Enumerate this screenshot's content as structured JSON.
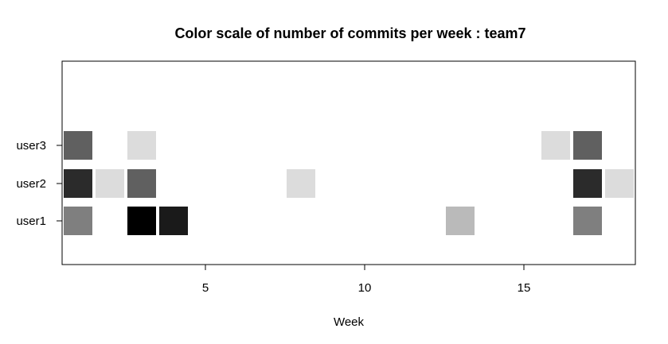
{
  "chart_data": {
    "type": "heatmap",
    "title": "Color scale of number of commits per week :  team7",
    "xlabel": "Week",
    "ylabel": "",
    "xlim": [
      0.5,
      18.5
    ],
    "x_ticks": [
      5,
      10,
      15
    ],
    "rows": [
      "user1",
      "user2",
      "user3"
    ],
    "grid": false,
    "legend": "none",
    "cells": [
      {
        "row": "user1",
        "week": 1,
        "shade": "#7f7f7f"
      },
      {
        "row": "user1",
        "week": 3,
        "shade": "#000000"
      },
      {
        "row": "user1",
        "week": 4,
        "shade": "#1a1a1a"
      },
      {
        "row": "user1",
        "week": 13,
        "shade": "#bababa"
      },
      {
        "row": "user1",
        "week": 17,
        "shade": "#7f7f7f"
      },
      {
        "row": "user2",
        "week": 1,
        "shade": "#2b2b2b"
      },
      {
        "row": "user2",
        "week": 2,
        "shade": "#dcdcdc"
      },
      {
        "row": "user2",
        "week": 3,
        "shade": "#606060"
      },
      {
        "row": "user2",
        "week": 8,
        "shade": "#dcdcdc"
      },
      {
        "row": "user2",
        "week": 17,
        "shade": "#2b2b2b"
      },
      {
        "row": "user2",
        "week": 18,
        "shade": "#dcdcdc"
      },
      {
        "row": "user3",
        "week": 1,
        "shade": "#606060"
      },
      {
        "row": "user3",
        "week": 3,
        "shade": "#dcdcdc"
      },
      {
        "row": "user3",
        "week": 16,
        "shade": "#dcdcdc"
      },
      {
        "row": "user3",
        "week": 17,
        "shade": "#606060"
      }
    ]
  }
}
